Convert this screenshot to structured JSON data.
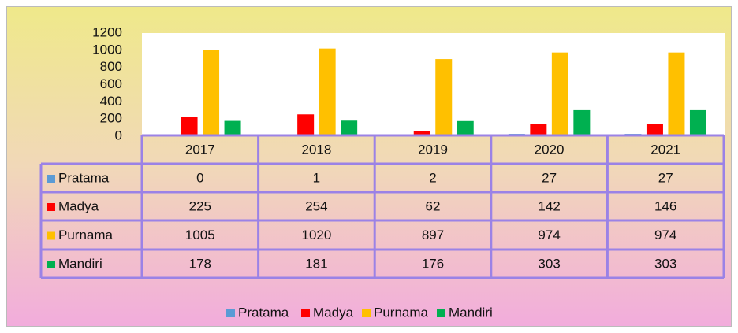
{
  "chart_data": {
    "type": "bar",
    "categories": [
      "2017",
      "2018",
      "2019",
      "2020",
      "2021"
    ],
    "series": [
      {
        "name": "Pratama",
        "color": "#5b9bd5",
        "values": [
          0,
          1,
          2,
          27,
          27
        ]
      },
      {
        "name": "Madya",
        "color": "#ff0000",
        "values": [
          225,
          254,
          62,
          142,
          146
        ]
      },
      {
        "name": "Purnama",
        "color": "#ffc000",
        "values": [
          1005,
          1020,
          897,
          974,
          974
        ]
      },
      {
        "name": "Mandiri",
        "color": "#00b050",
        "values": [
          178,
          181,
          176,
          303,
          303
        ]
      }
    ],
    "ylim": [
      0,
      1200
    ],
    "yticks": [
      0,
      200,
      400,
      600,
      800,
      1000,
      1200
    ],
    "data_table": true,
    "legend": "bottom"
  }
}
